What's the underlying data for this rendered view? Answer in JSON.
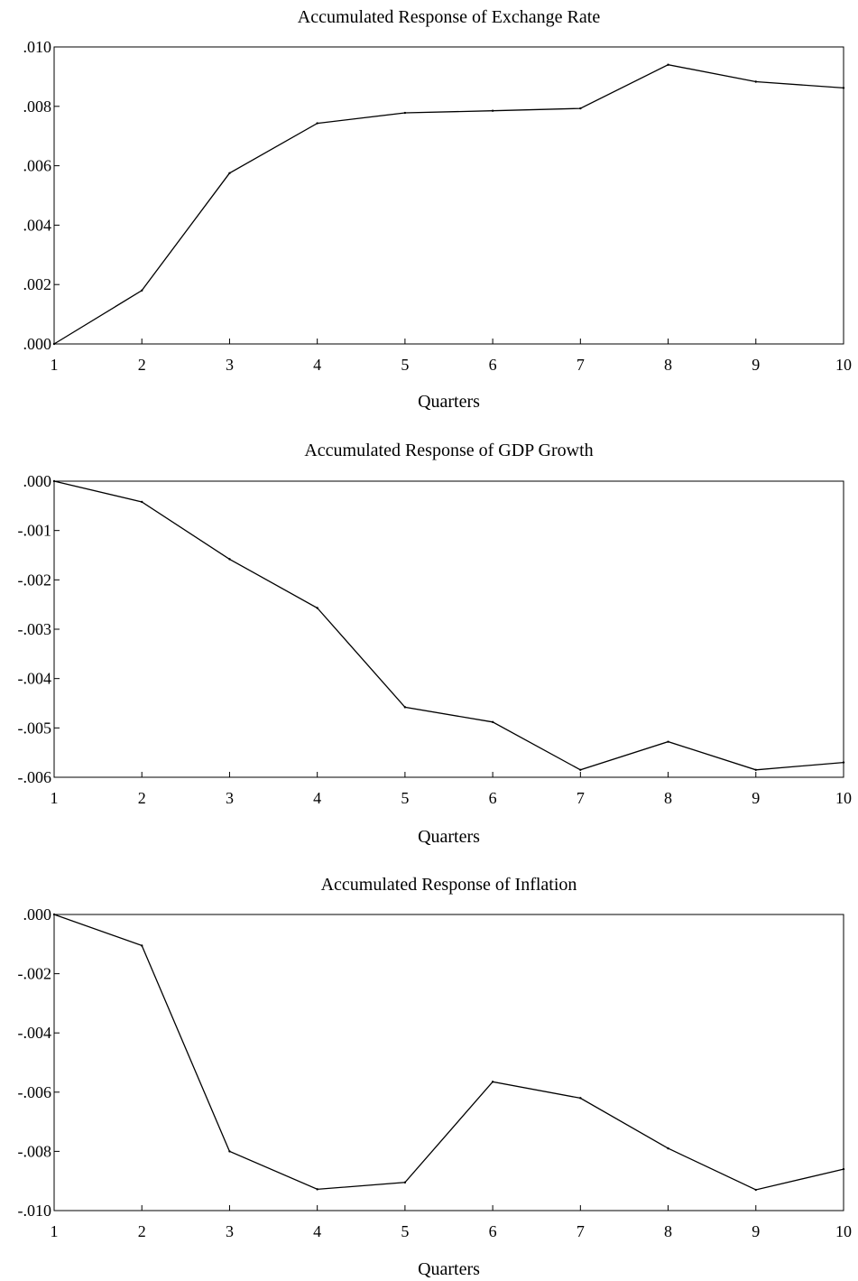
{
  "chart_data": [
    {
      "type": "line",
      "title": "Accumulated Response of Exchange Rate",
      "xlabel": "Quarters",
      "ylabel": "",
      "x": [
        1,
        2,
        3,
        4,
        5,
        6,
        7,
        8,
        9,
        10
      ],
      "values": [
        0.0,
        0.0018,
        0.00575,
        0.00743,
        0.00778,
        0.00785,
        0.00793,
        0.0094,
        0.00883,
        0.00862
      ],
      "ylim": [
        0.0,
        0.01
      ],
      "yticks": [
        0.0,
        0.002,
        0.004,
        0.006,
        0.008,
        0.01
      ],
      "ytick_labels": [
        ".000",
        ".002",
        ".004",
        ".006",
        ".008",
        ".010"
      ],
      "xtick_labels": [
        "1",
        "2",
        "3",
        "4",
        "5",
        "6",
        "7",
        "8",
        "9",
        "10"
      ],
      "grid": false
    },
    {
      "type": "line",
      "title": "Accumulated Response of GDP Growth",
      "xlabel": "Quarters",
      "ylabel": "",
      "x": [
        1,
        2,
        3,
        4,
        5,
        6,
        7,
        8,
        9,
        10
      ],
      "values": [
        0.0,
        -0.00042,
        -0.00158,
        -0.00257,
        -0.00458,
        -0.00488,
        -0.00585,
        -0.00528,
        -0.00585,
        -0.0057
      ],
      "ylim": [
        -0.006,
        0.0
      ],
      "yticks": [
        0.0,
        -0.001,
        -0.002,
        -0.003,
        -0.004,
        -0.005,
        -0.006
      ],
      "ytick_labels": [
        ".000",
        "-.001",
        "-.002",
        "-.003",
        "-.004",
        "-.005",
        "-.006"
      ],
      "xtick_labels": [
        "1",
        "2",
        "3",
        "4",
        "5",
        "6",
        "7",
        "8",
        "9",
        "10"
      ],
      "grid": false
    },
    {
      "type": "line",
      "title": "Accumulated Response of Inflation",
      "xlabel": "Quarters",
      "ylabel": "",
      "x": [
        1,
        2,
        3,
        4,
        5,
        6,
        7,
        8,
        9,
        10
      ],
      "values": [
        0.0,
        -0.00105,
        -0.008,
        -0.00928,
        -0.00905,
        -0.00565,
        -0.0062,
        -0.0079,
        -0.0093,
        -0.0086
      ],
      "ylim": [
        -0.01,
        0.0
      ],
      "yticks": [
        0.0,
        -0.002,
        -0.004,
        -0.006,
        -0.008,
        -0.01
      ],
      "ytick_labels": [
        ".000",
        "-.002",
        "-.004",
        "-.006",
        "-.008",
        "-.010"
      ],
      "xtick_labels": [
        "1",
        "2",
        "3",
        "4",
        "5",
        "6",
        "7",
        "8",
        "9",
        "10"
      ],
      "grid": false
    }
  ],
  "colors": {
    "line": "#000000",
    "axis": "#000000",
    "background": "#ffffff"
  }
}
